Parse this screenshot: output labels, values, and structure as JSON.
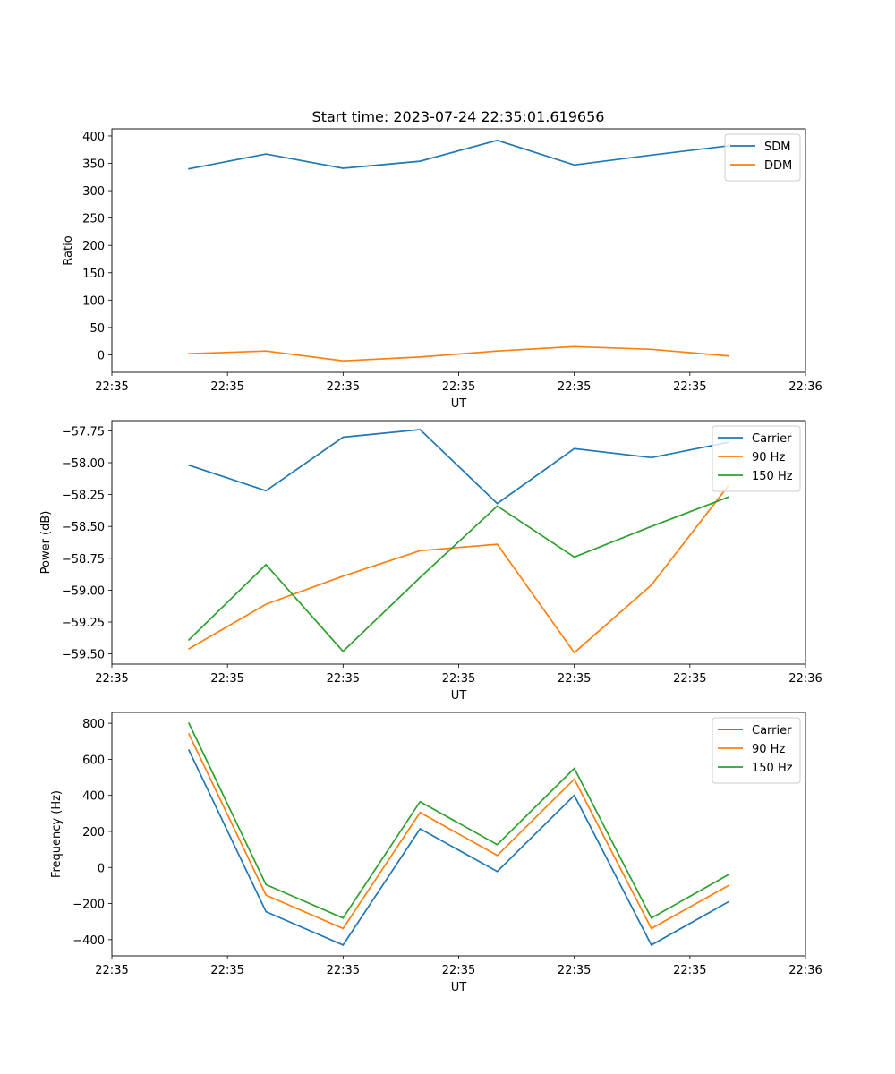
{
  "figure": {
    "title": "Start time: 2023-07-24 22:35:01.619656"
  },
  "colors": {
    "blue": "#1f77b4",
    "orange": "#ff7f0e",
    "green": "#2ca02c"
  },
  "chart_data": [
    {
      "type": "line",
      "title": "Start time: 2023-07-24 22:35:01.619656",
      "xlabel": "UT",
      "ylabel": "Ratio",
      "xlim": [
        0,
        9
      ],
      "ylim": [
        -32,
        413
      ],
      "x": [
        1,
        2,
        3,
        4,
        5,
        6,
        7,
        8
      ],
      "x_ticks": [
        0,
        1.5,
        3,
        4.5,
        6,
        7.5,
        9
      ],
      "x_tick_labels": [
        "22:35",
        "22:35",
        "22:35",
        "22:35",
        "22:35",
        "22:35",
        "22:36"
      ],
      "y_ticks": [
        0,
        50,
        100,
        150,
        200,
        250,
        300,
        350,
        400
      ],
      "y_tick_labels": [
        "0",
        "50",
        "100",
        "150",
        "200",
        "250",
        "300",
        "350",
        "400"
      ],
      "legend_position": "top-right",
      "series": [
        {
          "name": "SDM",
          "color": "#1f77b4",
          "values": [
            340,
            367,
            341,
            354,
            392,
            347,
            365,
            382
          ]
        },
        {
          "name": "DDM",
          "color": "#ff7f0e",
          "values": [
            2,
            7,
            -11,
            -4,
            7,
            15,
            10,
            -2
          ]
        }
      ]
    },
    {
      "type": "line",
      "title": "",
      "xlabel": "UT",
      "ylabel": "Power (dB)",
      "xlim": [
        0,
        9
      ],
      "ylim": [
        -59.58,
        -57.67
      ],
      "x": [
        1,
        2,
        3,
        4,
        5,
        6,
        7,
        8
      ],
      "x_ticks": [
        0,
        1.5,
        3,
        4.5,
        6,
        7.5,
        9
      ],
      "x_tick_labels": [
        "22:35",
        "22:35",
        "22:35",
        "22:35",
        "22:35",
        "22:35",
        "22:36"
      ],
      "y_ticks": [
        -57.75,
        -58.0,
        -58.25,
        -58.5,
        -58.75,
        -59.0,
        -59.25,
        -59.5
      ],
      "y_tick_labels": [
        "−57.75",
        "−58.00",
        "−58.25",
        "−58.50",
        "−58.75",
        "−59.00",
        "−59.25",
        "−59.50"
      ],
      "legend_position": "top-right",
      "series": [
        {
          "name": "Carrier",
          "color": "#1f77b4",
          "values": [
            -58.02,
            -58.22,
            -57.8,
            -57.74,
            -58.32,
            -57.89,
            -57.96,
            -57.84
          ]
        },
        {
          "name": "90 Hz",
          "color": "#ff7f0e",
          "values": [
            -59.46,
            -59.11,
            -58.89,
            -58.69,
            -58.64,
            -59.49,
            -58.96,
            -58.18
          ]
        },
        {
          "name": "150 Hz",
          "color": "#2ca02c",
          "values": [
            -59.39,
            -58.8,
            -59.48,
            -58.9,
            -58.34,
            -58.74,
            -58.5,
            -58.27
          ]
        }
      ]
    },
    {
      "type": "line",
      "title": "",
      "xlabel": "UT",
      "ylabel": "Frequency (Hz)",
      "xlim": [
        0,
        9
      ],
      "ylim": [
        -490,
        860
      ],
      "x": [
        1,
        2,
        3,
        4,
        5,
        6,
        7,
        8
      ],
      "x_ticks": [
        0,
        1.5,
        3,
        4.5,
        6,
        7.5,
        9
      ],
      "x_tick_labels": [
        "22:35",
        "22:35",
        "22:35",
        "22:35",
        "22:35",
        "22:35",
        "22:36"
      ],
      "y_ticks": [
        -400,
        -200,
        0,
        200,
        400,
        600,
        800
      ],
      "y_tick_labels": [
        "−400",
        "−200",
        "0",
        "200",
        "400",
        "600",
        "800"
      ],
      "legend_position": "top-right",
      "series": [
        {
          "name": "Carrier",
          "color": "#1f77b4",
          "values": [
            650,
            -245,
            -430,
            215,
            -22,
            400,
            -430,
            -190
          ]
        },
        {
          "name": "90 Hz",
          "color": "#ff7f0e",
          "values": [
            740,
            -153,
            -338,
            305,
            67,
            490,
            -338,
            -100
          ]
        },
        {
          "name": "150 Hz",
          "color": "#2ca02c",
          "values": [
            800,
            -95,
            -280,
            365,
            127,
            550,
            -280,
            -40
          ]
        }
      ]
    }
  ]
}
